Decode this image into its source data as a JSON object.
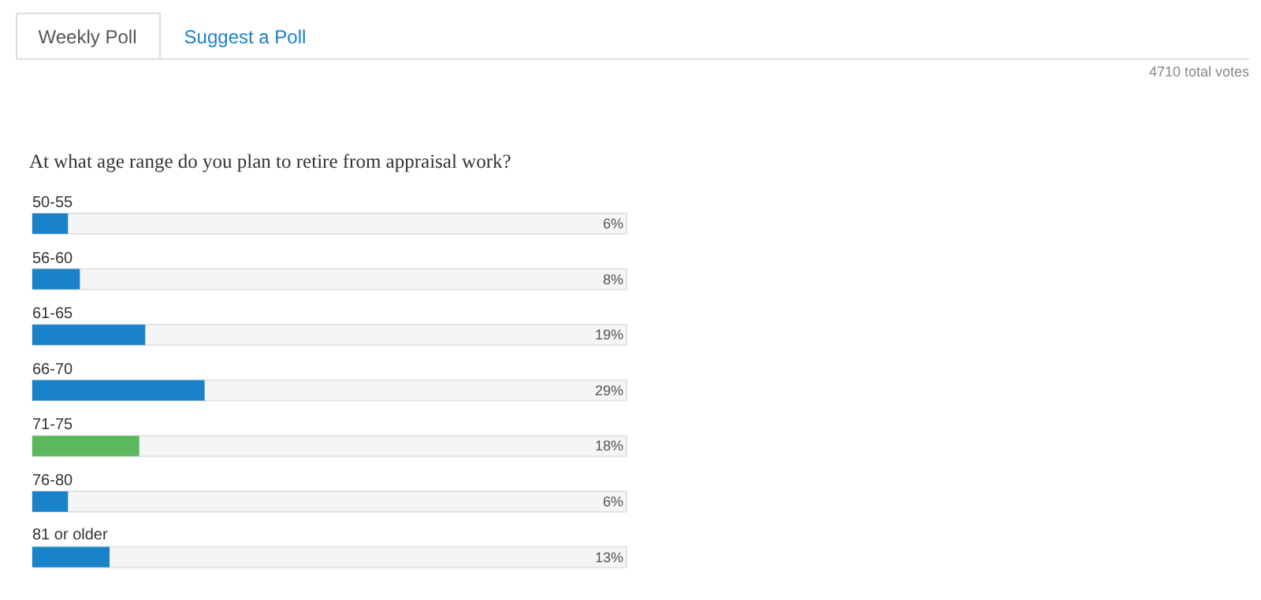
{
  "chart_data": {
    "type": "bar",
    "orientation": "horizontal",
    "title": "At what age range do you plan to retire from appraisal work?",
    "categories": [
      "50-55",
      "56-60",
      "61-65",
      "66-70",
      "71-75",
      "76-80",
      "81 or older"
    ],
    "values": [
      6,
      8,
      19,
      29,
      18,
      6,
      13
    ],
    "colors": [
      "#1a82c9",
      "#1a82c9",
      "#1a82c9",
      "#1a82c9",
      "#5cb85c",
      "#1a82c9",
      "#1a82c9"
    ],
    "value_labels": [
      "6%",
      "8%",
      "19%",
      "29%",
      "18%",
      "6%",
      "13%"
    ],
    "xlim": [
      0,
      100
    ],
    "tick_labels": false,
    "grid": false,
    "annotations": [
      "Weekly Poll",
      "Suggest a Poll",
      "4710 total votes"
    ]
  }
}
